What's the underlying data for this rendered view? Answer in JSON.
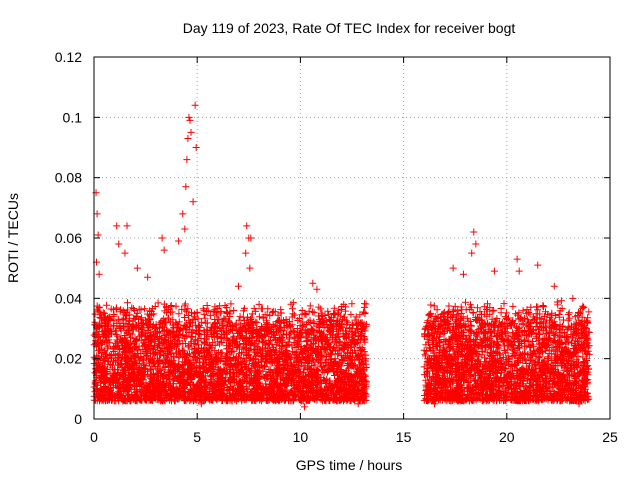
{
  "chart_data": {
    "type": "scatter",
    "title": "Day 119 of 2023, Rate Of TEC Index for receiver bogt",
    "xlabel": "GPS time / hours",
    "ylabel": "ROTI / TECUs",
    "xlim": [
      0,
      25
    ],
    "ylim": [
      0,
      0.12
    ],
    "x_ticks": [
      0,
      5,
      10,
      15,
      20,
      25
    ],
    "x_tick_labels": [
      "0",
      "5",
      "10",
      "15",
      "20",
      "25"
    ],
    "y_ticks": [
      0,
      0.02,
      0.04,
      0.06,
      0.08,
      0.1,
      0.12
    ],
    "y_tick_labels": [
      "0",
      "0.02",
      "0.04",
      "0.06",
      "0.08",
      "0.1",
      "0.12"
    ],
    "grid": true,
    "marker": "+",
    "color": "#ff0000",
    "data_gap_hours": [
      13.2,
      16.0
    ],
    "series": [
      {
        "name": "ROTI",
        "points": [
          [
            0.1,
            0.075
          ],
          [
            0.15,
            0.068
          ],
          [
            0.2,
            0.061
          ],
          [
            0.12,
            0.052
          ],
          [
            0.25,
            0.048
          ],
          [
            1.1,
            0.064
          ],
          [
            1.2,
            0.058
          ],
          [
            1.6,
            0.064
          ],
          [
            1.5,
            0.055
          ],
          [
            2.1,
            0.05
          ],
          [
            2.6,
            0.047
          ],
          [
            3.3,
            0.06
          ],
          [
            3.4,
            0.056
          ],
          [
            4.4,
            0.063
          ],
          [
            4.5,
            0.086
          ],
          [
            4.55,
            0.093
          ],
          [
            4.6,
            0.1
          ],
          [
            4.65,
            0.099
          ],
          [
            4.45,
            0.077
          ],
          [
            4.7,
            0.095
          ],
          [
            4.9,
            0.104
          ],
          [
            4.95,
            0.09
          ],
          [
            4.8,
            0.072
          ],
          [
            4.3,
            0.068
          ],
          [
            4.1,
            0.059
          ],
          [
            7.4,
            0.064
          ],
          [
            7.5,
            0.06
          ],
          [
            7.6,
            0.06
          ],
          [
            7.35,
            0.055
          ],
          [
            7.55,
            0.05
          ],
          [
            7.0,
            0.044
          ],
          [
            8.0,
            0.038
          ],
          [
            10.6,
            0.045
          ],
          [
            10.8,
            0.043
          ],
          [
            11.6,
            0.035
          ],
          [
            12.1,
            0.038
          ],
          [
            13.1,
            0.037
          ],
          [
            18.4,
            0.062
          ],
          [
            18.5,
            0.058
          ],
          [
            18.3,
            0.055
          ],
          [
            17.4,
            0.05
          ],
          [
            17.9,
            0.048
          ],
          [
            19.4,
            0.049
          ],
          [
            20.5,
            0.053
          ],
          [
            20.6,
            0.049
          ],
          [
            21.5,
            0.051
          ],
          [
            22.3,
            0.044
          ],
          [
            16.3,
            0.035
          ],
          [
            23.2,
            0.04
          ],
          [
            23.9,
            0.032
          ],
          [
            1.0,
            0.006
          ],
          [
            5.2,
            0.005
          ],
          [
            10.2,
            0.004
          ],
          [
            12.8,
            0.005
          ],
          [
            16.5,
            0.005
          ],
          [
            23.5,
            0.005
          ]
        ],
        "dense_band": [
          {
            "x_range": [
              0,
              13.2
            ],
            "typical_range": [
              0.006,
              0.035
            ]
          },
          {
            "x_range": [
              16.0,
              24.0
            ],
            "typical_range": [
              0.006,
              0.035
            ]
          }
        ]
      }
    ]
  }
}
